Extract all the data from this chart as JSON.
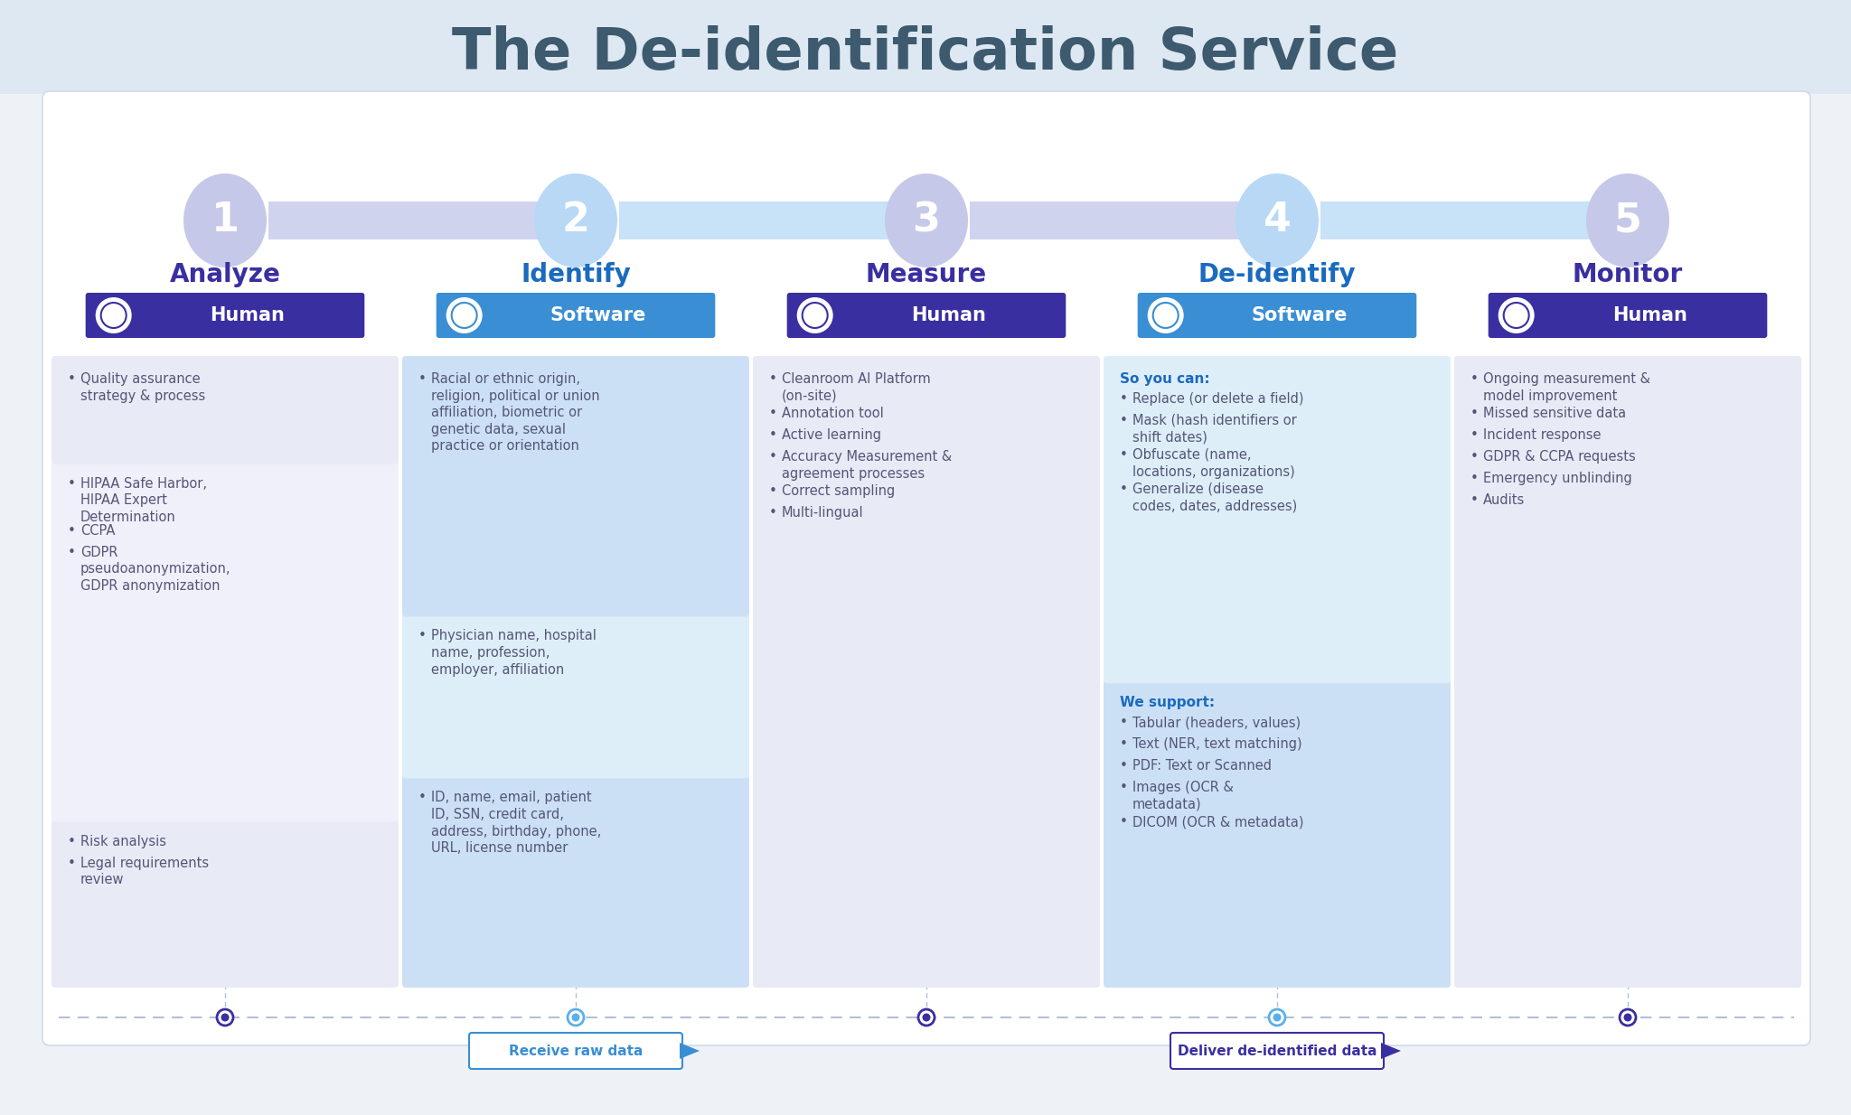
{
  "title": "The De-identification Service",
  "title_color": "#3d5a6e",
  "steps": [
    {
      "number": "1",
      "label": "Analyze",
      "type": "Human",
      "circle_color": "#c5c8e8",
      "arrow_color": "#d0d3ee",
      "label_color": "#3a2fa0",
      "badge_color": "#3a2fa0",
      "sections": [
        {
          "bg": "#e8eaf6",
          "items": [
            "Risk analysis",
            "Legal requirements\nreview"
          ]
        },
        {
          "bg": "#eff0fa",
          "items": [
            "HIPAA Safe Harbor,\nHIPAA Expert\nDetermination",
            "CCPA",
            "GDPR\npseudoanonymization,\nGDPR anonymization"
          ]
        },
        {
          "bg": "#e8eaf6",
          "items": [
            "Quality assurance\nstrategy & process"
          ]
        }
      ]
    },
    {
      "number": "2",
      "label": "Identify",
      "type": "Software",
      "circle_color": "#b8d8f5",
      "arrow_color": "#c8e2f8",
      "label_color": "#1a6abf",
      "badge_color": "#3a8ed4",
      "sections": [
        {
          "bg": "#cce0f5",
          "items": [
            "ID, name, email, patient\nID, SSN, credit card,\naddress, birthday, phone,\nURL, license number"
          ]
        },
        {
          "bg": "#ddeef8",
          "items": [
            "Physician name, hospital\nname, profession,\nemployer, affiliation"
          ]
        },
        {
          "bg": "#cce0f5",
          "items": [
            "Racial or ethnic origin,\nreligion, political or union\naffiliation, biometric or\ngenetic data, sexual\npractice or orientation"
          ]
        }
      ]
    },
    {
      "number": "3",
      "label": "Measure",
      "type": "Human",
      "circle_color": "#c5c8e8",
      "arrow_color": "#d0d3ee",
      "label_color": "#3a2fa0",
      "badge_color": "#3a2fa0",
      "sections": [
        {
          "bg": "#e8eaf6",
          "items": [
            "Cleanroom AI Platform\n(on-site)",
            "Annotation tool",
            "Active learning",
            "Accuracy Measurement &\nagreement processes",
            "Correct sampling",
            "Multi-lingual"
          ]
        }
      ]
    },
    {
      "number": "4",
      "label": "De-identify",
      "type": "Software",
      "circle_color": "#b8d8f5",
      "arrow_color": "#c8e2f8",
      "label_color": "#1a6abf",
      "badge_color": "#3a8ed4",
      "sections": [
        {
          "bg": "#cce0f5",
          "header": "We support:",
          "header_color": "#1a6abf",
          "items": [
            "Tabular (headers, values)",
            "Text (NER, text matching)",
            "PDF: Text or Scanned",
            "Images (OCR &\nmetadata)",
            "DICOM (OCR & metadata)"
          ]
        },
        {
          "bg": "#ddeef8",
          "header": "So you can:",
          "header_color": "#1a6abf",
          "items": [
            "Replace (or delete a field)",
            "Mask (hash identifiers or\nshift dates)",
            "Obfuscate (name,\nlocations, organizations)",
            "Generalize (disease\ncodes, dates, addresses)"
          ]
        }
      ]
    },
    {
      "number": "5",
      "label": "Monitor",
      "type": "Human",
      "circle_color": "#c5c8e8",
      "arrow_color": "#d0d3ee",
      "label_color": "#3a2fa0",
      "badge_color": "#3a2fa0",
      "sections": [
        {
          "bg": "#e8eaf6",
          "items": [
            "Ongoing measurement &\nmodel improvement",
            "Missed sensitive data",
            "Incident response",
            "GDPR & CCPA requests",
            "Emergency unblinding",
            "Audits"
          ]
        }
      ]
    }
  ],
  "bottom_arrows": [
    {
      "label": "Receive raw data",
      "col": 1,
      "border_color": "#3a8ed4",
      "text_color": "#3a8ed4"
    },
    {
      "label": "Deliver de-identified data",
      "col": 3,
      "border_color": "#3a2fa0",
      "text_color": "#3a2fa0"
    }
  ]
}
